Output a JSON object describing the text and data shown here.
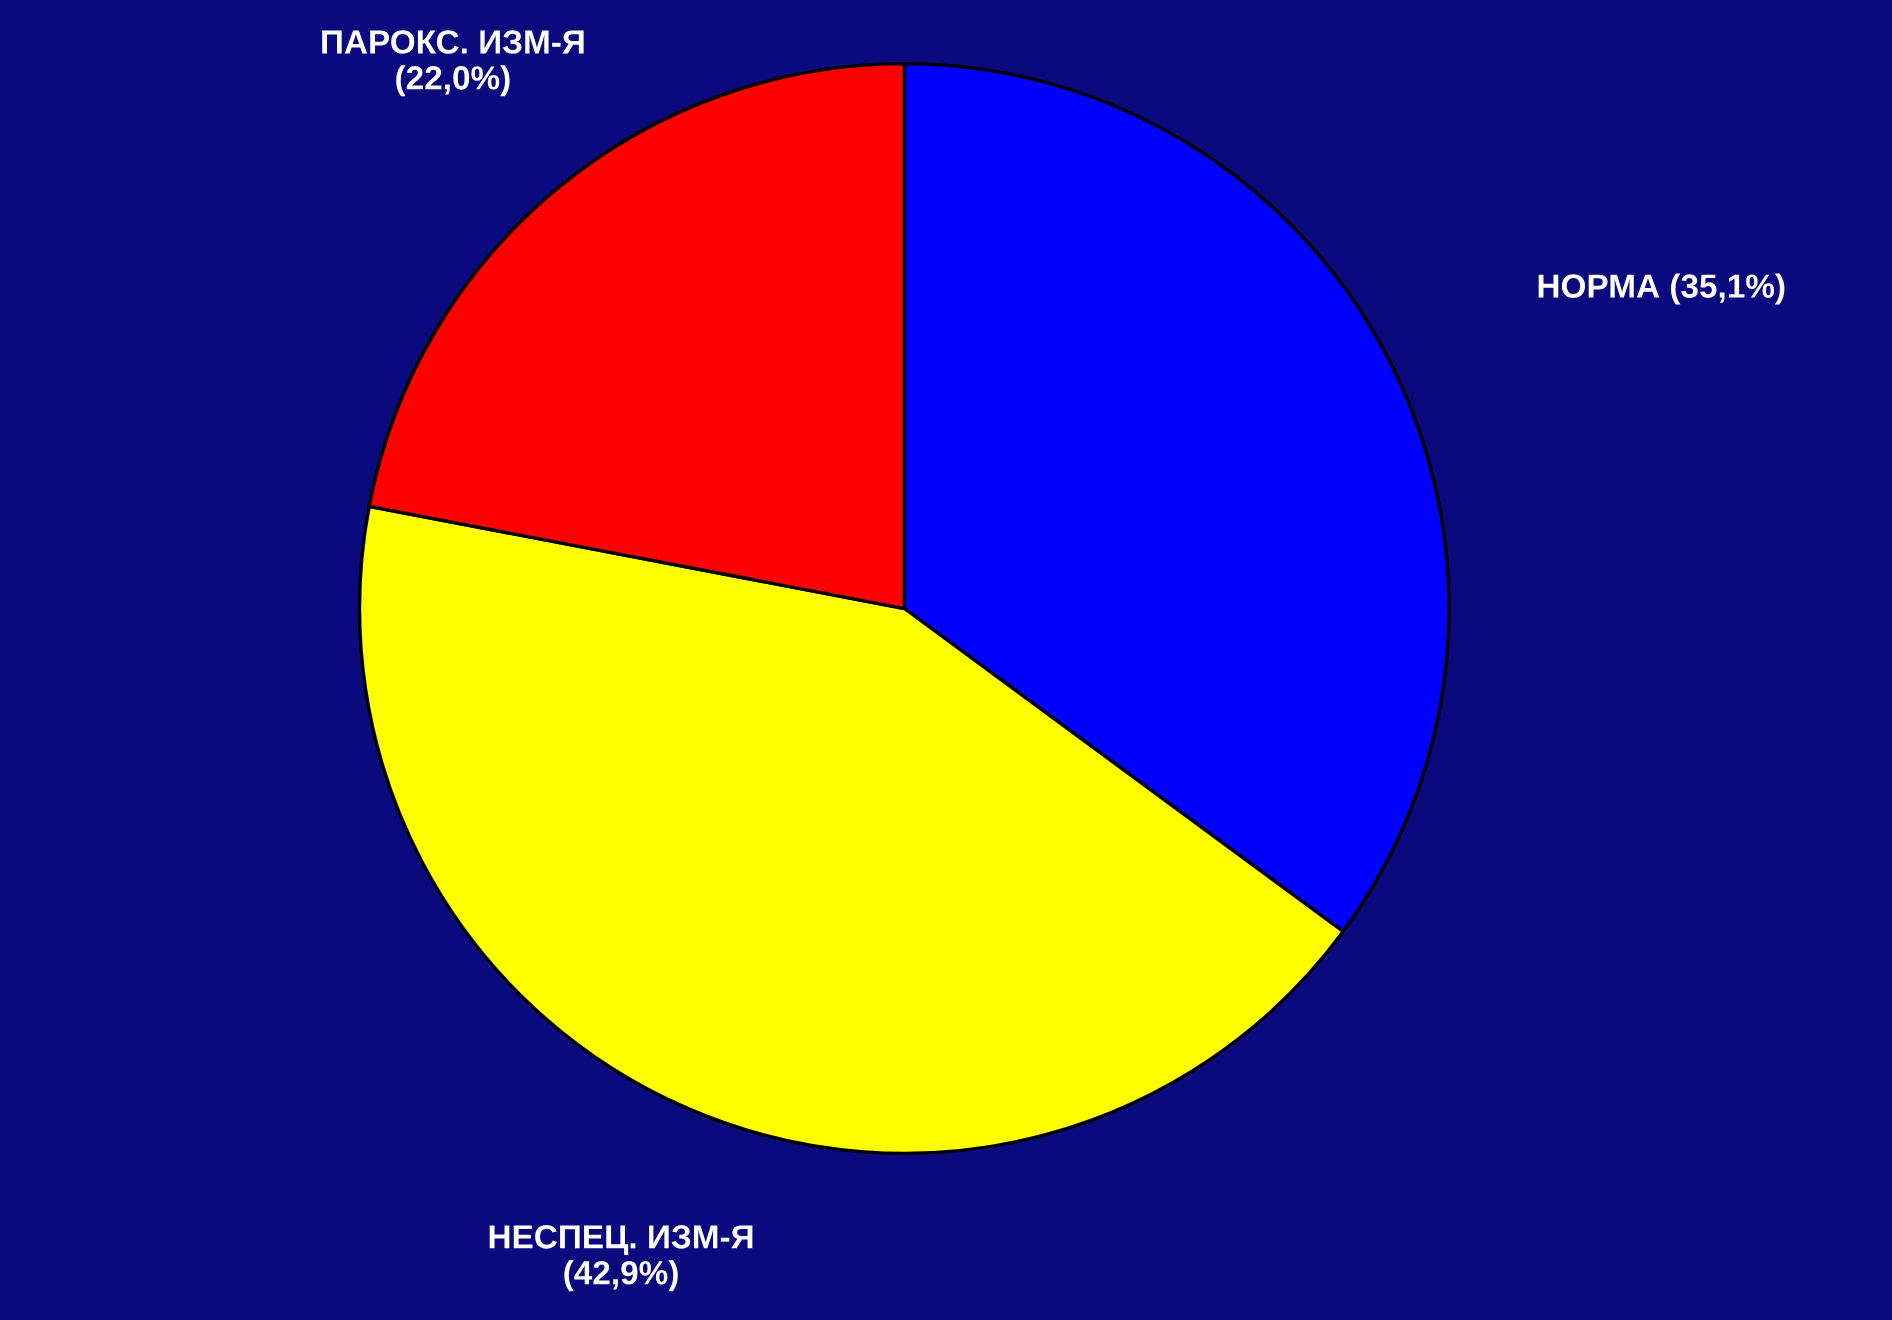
{
  "chart_data": {
    "type": "pie",
    "categories": [
      "НОРМА",
      "НЕСПЕЦ. ИЗМ-Я",
      "ПАРОКС. ИЗМ-Я"
    ],
    "values": [
      35.1,
      42.9,
      22.0
    ],
    "value_labels": [
      "(35,1%)",
      "(42,9%)",
      "(22,0%)"
    ],
    "colors": [
      "#0000ff",
      "#ffff00",
      "#ff0000"
    ],
    "legend": false
  }
}
